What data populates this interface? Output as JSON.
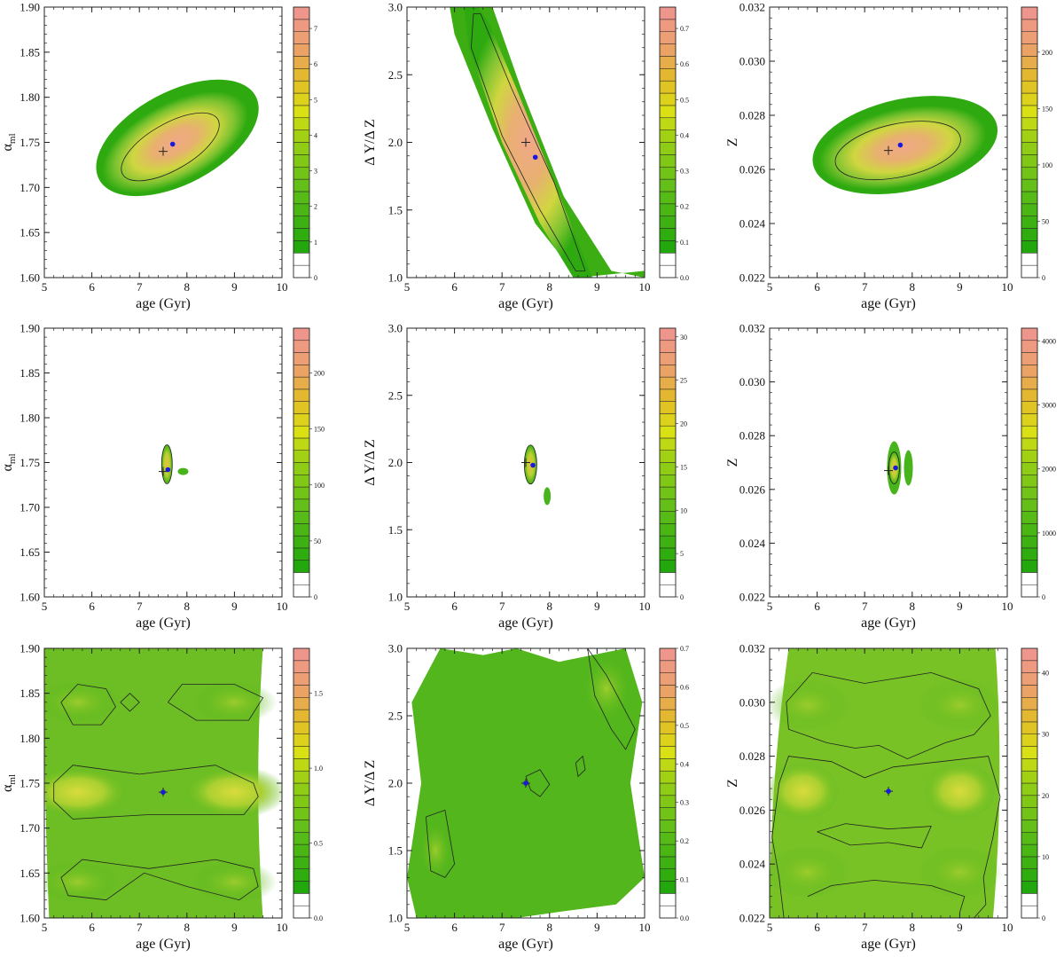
{
  "figure": {
    "panels": [
      {
        "id": "r1c1",
        "ylabel_main": "α",
        "ylabel_sub": "ml",
        "xlabel": "age (Gyr)",
        "xlim": [
          5,
          10
        ],
        "ylim": [
          1.6,
          1.9
        ],
        "xticks": [
          "5",
          "6",
          "7",
          "8",
          "9",
          "10"
        ],
        "yticks": [
          "1.60",
          "1.65",
          "1.70",
          "1.75",
          "1.80",
          "1.85",
          "1.90"
        ],
        "colorbar": {
          "max": 7.6,
          "ticks": [
            "0",
            "1",
            "2",
            "3",
            "4",
            "5",
            "6",
            "7"
          ]
        }
      },
      {
        "id": "r1c2",
        "ylabel_main": "Δ Y/Δ Z",
        "ylabel_sub": "",
        "xlabel": "age (Gyr)",
        "xlim": [
          5,
          10
        ],
        "ylim": [
          1.0,
          3.0
        ],
        "xticks": [
          "5",
          "6",
          "7",
          "8",
          "9",
          "10"
        ],
        "yticks": [
          "1.0",
          "1.5",
          "2.0",
          "2.5",
          "3.0"
        ],
        "colorbar": {
          "max": 0.76,
          "ticks": [
            "0.0",
            "0.1",
            "0.2",
            "0.3",
            "0.4",
            "0.5",
            "0.6",
            "0.7"
          ]
        }
      },
      {
        "id": "r1c3",
        "ylabel_main": "Z",
        "ylabel_sub": "",
        "xlabel": "age (Gyr)",
        "xlim": [
          5,
          10
        ],
        "ylim": [
          0.022,
          0.032
        ],
        "xticks": [
          "5",
          "6",
          "7",
          "8",
          "9",
          "10"
        ],
        "yticks": [
          "0.022",
          "0.024",
          "0.026",
          "0.028",
          "0.030",
          "0.032"
        ],
        "colorbar": {
          "max": 240,
          "ticks": [
            "0",
            "50",
            "100",
            "150",
            "200"
          ]
        }
      },
      {
        "id": "r2c1",
        "ylabel_main": "α",
        "ylabel_sub": "ml",
        "xlabel": "age (Gyr)",
        "xlim": [
          5,
          10
        ],
        "ylim": [
          1.6,
          1.9
        ],
        "xticks": [
          "5",
          "6",
          "7",
          "8",
          "9",
          "10"
        ],
        "yticks": [
          "1.60",
          "1.65",
          "1.70",
          "1.75",
          "1.80",
          "1.85",
          "1.90"
        ],
        "colorbar": {
          "max": 240,
          "ticks": [
            "0",
            "50",
            "100",
            "150",
            "200"
          ]
        }
      },
      {
        "id": "r2c2",
        "ylabel_main": "Δ Y/Δ Z",
        "ylabel_sub": "",
        "xlabel": "age (Gyr)",
        "xlim": [
          5,
          10
        ],
        "ylim": [
          1.0,
          3.0
        ],
        "xticks": [
          "5",
          "6",
          "7",
          "8",
          "9",
          "10"
        ],
        "yticks": [
          "1.0",
          "1.5",
          "2.0",
          "2.5",
          "3.0"
        ],
        "colorbar": {
          "max": 31,
          "ticks": [
            "0",
            "5",
            "10",
            "15",
            "20",
            "25",
            "30"
          ]
        }
      },
      {
        "id": "r2c3",
        "ylabel_main": "Z",
        "ylabel_sub": "",
        "xlabel": "age (Gyr)",
        "xlim": [
          5,
          10
        ],
        "ylim": [
          0.022,
          0.032
        ],
        "xticks": [
          "5",
          "6",
          "7",
          "8",
          "9",
          "10"
        ],
        "yticks": [
          "0.022",
          "0.024",
          "0.026",
          "0.028",
          "0.030",
          "0.032"
        ],
        "colorbar": {
          "max": 4200,
          "ticks": [
            "0",
            "1000",
            "2000",
            "3000",
            "4000"
          ]
        }
      },
      {
        "id": "r3c1",
        "ylabel_main": "α",
        "ylabel_sub": "ml",
        "xlabel": "age (Gyr)",
        "xlim": [
          5,
          10
        ],
        "ylim": [
          1.6,
          1.9
        ],
        "xticks": [
          "5",
          "6",
          "7",
          "8",
          "9",
          "10"
        ],
        "yticks": [
          "1.60",
          "1.65",
          "1.70",
          "1.75",
          "1.80",
          "1.85",
          "1.90"
        ],
        "colorbar": {
          "max": 1.8,
          "ticks": [
            "0.0",
            "0.5",
            "1.0",
            "1.5"
          ]
        }
      },
      {
        "id": "r3c2",
        "ylabel_main": "Δ Y/Δ Z",
        "ylabel_sub": "",
        "xlabel": "age (Gyr)",
        "xlim": [
          5,
          10
        ],
        "ylim": [
          1.0,
          3.0
        ],
        "xticks": [
          "5",
          "6",
          "7",
          "8",
          "9",
          "10"
        ],
        "yticks": [
          "1.0",
          "1.5",
          "2.0",
          "2.5",
          "3.0"
        ],
        "colorbar": {
          "max": 0.7,
          "ticks": [
            "0.0",
            "0.1",
            "0.2",
            "0.3",
            "0.4",
            "0.5",
            "0.6",
            "0.7"
          ]
        }
      },
      {
        "id": "r3c3",
        "ylabel_main": "Z",
        "ylabel_sub": "",
        "xlabel": "age (Gyr)",
        "xlim": [
          5,
          10
        ],
        "ylim": [
          0.022,
          0.032
        ],
        "xticks": [
          "5",
          "6",
          "7",
          "8",
          "9",
          "10"
        ],
        "yticks": [
          "0.022",
          "0.024",
          "0.026",
          "0.028",
          "0.030",
          "0.032"
        ],
        "colorbar": {
          "max": 44,
          "ticks": [
            "0",
            "10",
            "20",
            "30",
            "40"
          ]
        }
      }
    ]
  },
  "chart_data": [
    {
      "type": "heatmap",
      "x_name": "age (Gyr)",
      "y_name": "αml",
      "xlim": [
        5,
        10
      ],
      "ylim": [
        1.6,
        1.9
      ],
      "true_value": {
        "x": 7.5,
        "y": 1.74
      },
      "best_fit": {
        "x": 7.7,
        "y": 1.748
      },
      "colorbar_ticks": [
        0,
        1,
        2,
        3,
        4,
        5,
        6,
        7
      ]
    },
    {
      "type": "heatmap",
      "x_name": "age (Gyr)",
      "y_name": "Δ Y/Δ Z",
      "xlim": [
        5,
        10
      ],
      "ylim": [
        1.0,
        3.0
      ],
      "true_value": {
        "x": 7.5,
        "y": 2.0
      },
      "best_fit": {
        "x": 7.7,
        "y": 1.89
      },
      "colorbar_ticks": [
        0.0,
        0.1,
        0.2,
        0.3,
        0.4,
        0.5,
        0.6,
        0.7
      ]
    },
    {
      "type": "heatmap",
      "x_name": "age (Gyr)",
      "y_name": "Z",
      "xlim": [
        5,
        10
      ],
      "ylim": [
        0.022,
        0.032
      ],
      "true_value": {
        "x": 7.5,
        "y": 0.0267
      },
      "best_fit": {
        "x": 7.75,
        "y": 0.0269
      },
      "colorbar_ticks": [
        0,
        50,
        100,
        150,
        200
      ]
    },
    {
      "type": "heatmap",
      "x_name": "age (Gyr)",
      "y_name": "αml",
      "xlim": [
        5,
        10
      ],
      "ylim": [
        1.6,
        1.9
      ],
      "true_value": {
        "x": 7.5,
        "y": 1.74
      },
      "best_fit": {
        "x": 7.6,
        "y": 1.742
      },
      "colorbar_ticks": [
        0,
        50,
        100,
        150,
        200
      ]
    },
    {
      "type": "heatmap",
      "x_name": "age (Gyr)",
      "y_name": "Δ Y/Δ Z",
      "xlim": [
        5,
        10
      ],
      "ylim": [
        1.0,
        3.0
      ],
      "true_value": {
        "x": 7.5,
        "y": 2.0
      },
      "best_fit": {
        "x": 7.65,
        "y": 1.98
      },
      "colorbar_ticks": [
        0,
        5,
        10,
        15,
        20,
        25,
        30
      ]
    },
    {
      "type": "heatmap",
      "x_name": "age (Gyr)",
      "y_name": "Z",
      "xlim": [
        5,
        10
      ],
      "ylim": [
        0.022,
        0.032
      ],
      "true_value": {
        "x": 7.5,
        "y": 0.0267
      },
      "best_fit": {
        "x": 7.65,
        "y": 0.0268
      },
      "colorbar_ticks": [
        0,
        1000,
        2000,
        3000,
        4000
      ]
    },
    {
      "type": "heatmap",
      "x_name": "age (Gyr)",
      "y_name": "αml",
      "xlim": [
        5,
        10
      ],
      "ylim": [
        1.6,
        1.9
      ],
      "true_value": {
        "x": 7.5,
        "y": 1.74
      },
      "best_fit": {
        "x": 7.5,
        "y": 1.74
      },
      "colorbar_ticks": [
        0.0,
        0.5,
        1.0,
        1.5
      ]
    },
    {
      "type": "heatmap",
      "x_name": "age (Gyr)",
      "y_name": "Δ Y/Δ Z",
      "xlim": [
        5,
        10
      ],
      "ylim": [
        1.0,
        3.0
      ],
      "true_value": {
        "x": 7.5,
        "y": 2.0
      },
      "best_fit": {
        "x": 7.5,
        "y": 2.0
      },
      "colorbar_ticks": [
        0.0,
        0.1,
        0.2,
        0.3,
        0.4,
        0.5,
        0.6,
        0.7
      ]
    },
    {
      "type": "heatmap",
      "x_name": "age (Gyr)",
      "y_name": "Z",
      "xlim": [
        5,
        10
      ],
      "ylim": [
        0.022,
        0.032
      ],
      "true_value": {
        "x": 7.5,
        "y": 0.0267
      },
      "best_fit": {
        "x": 7.5,
        "y": 0.0267
      },
      "colorbar_ticks": [
        0,
        10,
        20,
        30,
        40
      ]
    }
  ]
}
